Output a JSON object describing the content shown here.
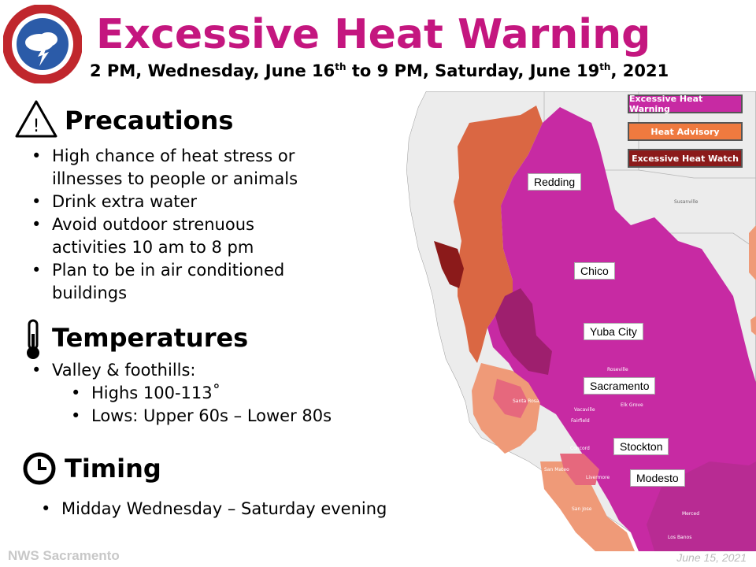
{
  "header": {
    "title": "Excessive Heat Warning",
    "subtitle_part1": "2 PM, Wednesday, June 16",
    "subtitle_sup1": "th",
    "subtitle_part2": " to 9 PM, Saturday, June 19",
    "subtitle_sup2": "th",
    "subtitle_part3": ", 2021"
  },
  "precautions": {
    "heading": "Precautions",
    "items": [
      "High chance of heat stress or illnesses to people or animals",
      "Drink extra water",
      "Avoid outdoor strenuous activities 10 am to 8 pm",
      "Plan to be in air conditioned buildings"
    ]
  },
  "temperatures": {
    "heading": "Temperatures",
    "item": "Valley & foothills:",
    "highs": "Highs 100-113˚",
    "lows": "Lows: Upper 60s – Lower 80s"
  },
  "timing": {
    "heading": "Timing",
    "item": "Midday Wednesday – Saturday evening"
  },
  "legend": {
    "warning": "Excessive Heat Warning",
    "advisory": "Heat Advisory",
    "watch": "Excessive Heat Watch"
  },
  "cities": {
    "redding": "Redding",
    "chico": "Chico",
    "yuba_city": "Yuba City",
    "sacramento": "Sacramento",
    "stockton": "Stockton",
    "modesto": "Modesto"
  },
  "colors": {
    "warning": "#c72aa3",
    "advisory": "#e8773a",
    "watch": "#8b1a1a",
    "title": "#c4167f"
  },
  "footer": {
    "office": "NWS Sacramento",
    "date": "June 15, 2021"
  }
}
